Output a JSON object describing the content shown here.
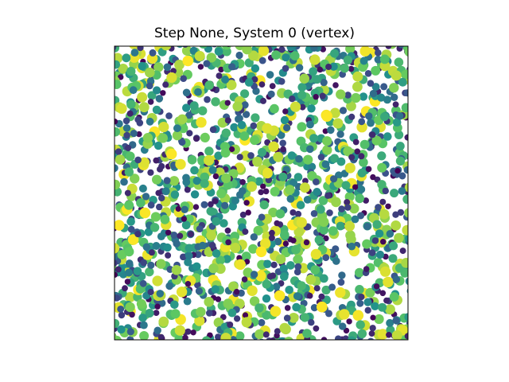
{
  "chart_data": {
    "type": "scatter",
    "title": "Step None, System 0 (vertex)",
    "xlabel": "",
    "ylabel": "",
    "axes_ticks": "none",
    "axes_frame": "black",
    "aspect": "equal",
    "grid": false,
    "legend": "none",
    "colormap": "viridis",
    "colormap_colors": [
      "#440154",
      "#3b528b",
      "#21918c",
      "#5ec962",
      "#fde725"
    ],
    "marker": "circle",
    "point_count_estimate": 1600,
    "values_note_text": "",
    "sample_points": [
      {
        "x": 0.04,
        "y": 0.96,
        "c": 0.55
      },
      {
        "x": 0.12,
        "y": 0.91,
        "c": 0.85
      },
      {
        "x": 0.25,
        "y": 0.95,
        "c": 1.0
      },
      {
        "x": 0.4,
        "y": 0.93,
        "c": 0.3
      },
      {
        "x": 0.55,
        "y": 0.97,
        "c": 0.7
      },
      {
        "x": 0.7,
        "y": 0.92,
        "c": 0.05
      },
      {
        "x": 0.85,
        "y": 0.95,
        "c": 0.45
      },
      {
        "x": 0.96,
        "y": 0.9,
        "c": 0.9
      },
      {
        "x": 0.08,
        "y": 0.75,
        "c": 0.2
      },
      {
        "x": 0.3,
        "y": 0.78,
        "c": 0.65
      },
      {
        "x": 0.52,
        "y": 0.72,
        "c": 0.95
      },
      {
        "x": 0.77,
        "y": 0.7,
        "c": 0.35
      },
      {
        "x": 0.92,
        "y": 0.76,
        "c": 0.6
      },
      {
        "x": 0.15,
        "y": 0.5,
        "c": 0.1
      },
      {
        "x": 0.38,
        "y": 0.55,
        "c": 0.8
      },
      {
        "x": 0.6,
        "y": 0.48,
        "c": 0.4
      },
      {
        "x": 0.82,
        "y": 0.52,
        "c": 0.0
      },
      {
        "x": 0.05,
        "y": 0.3,
        "c": 0.75
      },
      {
        "x": 0.28,
        "y": 0.25,
        "c": 0.5
      },
      {
        "x": 0.5,
        "y": 0.3,
        "c": 1.0
      },
      {
        "x": 0.72,
        "y": 0.28,
        "c": 0.25
      },
      {
        "x": 0.95,
        "y": 0.32,
        "c": 0.6
      },
      {
        "x": 0.1,
        "y": 0.05,
        "c": 0.4
      },
      {
        "x": 0.45,
        "y": 0.06,
        "c": 0.9
      },
      {
        "x": 0.88,
        "y": 0.04,
        "c": 0.15
      }
    ]
  }
}
